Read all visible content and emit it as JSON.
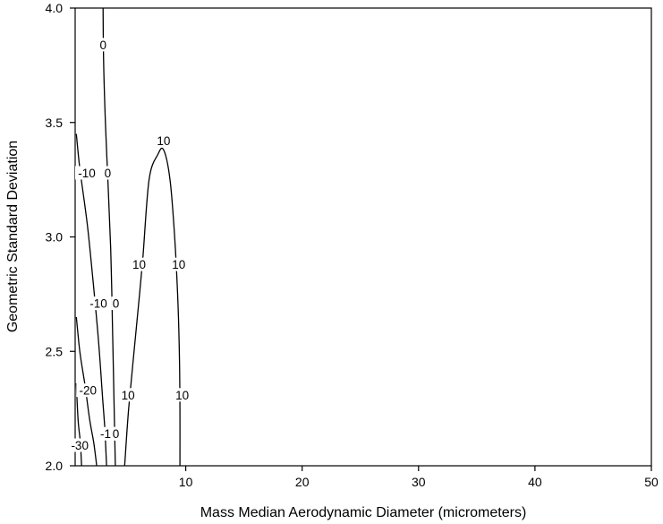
{
  "chart_data": {
    "type": "contour",
    "title": "",
    "xlabel": "Mass Median Aerodynamic Diameter (micrometers)",
    "ylabel": "Geometric Standard Deviation",
    "xlim": [
      0.5,
      50
    ],
    "ylim": [
      2.0,
      4.0
    ],
    "x_ticks": [
      10,
      20,
      30,
      40,
      50
    ],
    "y_ticks": [
      2.0,
      2.5,
      3.0,
      3.5,
      4.0
    ],
    "x_tick_labels": [
      "10",
      "20",
      "30",
      "40",
      "50"
    ],
    "y_tick_labels": [
      "2.0",
      "2.5",
      "3.0",
      "3.5",
      "4.0"
    ],
    "grid": false,
    "contours": [
      {
        "level": -30,
        "label": "-30",
        "points": [
          [
            0.6,
            2.36
          ],
          [
            0.75,
            2.2
          ],
          [
            0.95,
            2.1
          ],
          [
            1.05,
            2.0
          ]
        ],
        "labels_at": [
          [
            0.9,
            2.09
          ]
        ]
      },
      {
        "level": -20,
        "label": "-20",
        "points": [
          [
            0.6,
            2.65
          ],
          [
            0.9,
            2.5
          ],
          [
            1.35,
            2.35
          ],
          [
            1.75,
            2.2
          ],
          [
            2.1,
            2.1
          ],
          [
            2.35,
            2.0
          ]
        ],
        "labels_at": [
          [
            1.6,
            2.33
          ]
        ]
      },
      {
        "level": -10,
        "label": "-10",
        "points": [
          [
            0.6,
            3.45
          ],
          [
            0.9,
            3.3
          ],
          [
            1.55,
            3.05
          ],
          [
            2.05,
            2.8
          ],
          [
            2.5,
            2.55
          ],
          [
            2.85,
            2.3
          ],
          [
            3.05,
            2.16
          ],
          [
            3.2,
            2.0
          ]
        ],
        "labels_at": [
          [
            1.5,
            3.28
          ],
          [
            2.5,
            2.71
          ],
          [
            3.4,
            2.14
          ]
        ]
      },
      {
        "level": 0,
        "label": "0",
        "points": [
          [
            2.9,
            4.0
          ],
          [
            2.95,
            3.75
          ],
          [
            3.1,
            3.5
          ],
          [
            3.35,
            3.2
          ],
          [
            3.55,
            2.95
          ],
          [
            3.65,
            2.75
          ],
          [
            3.75,
            2.5
          ],
          [
            3.85,
            2.25
          ],
          [
            3.95,
            2.0
          ]
        ],
        "labels_at": [
          [
            2.9,
            3.84
          ],
          [
            3.3,
            3.28
          ],
          [
            4.0,
            2.71
          ],
          [
            4.0,
            2.14
          ]
        ]
      },
      {
        "level": 10,
        "label": "10",
        "points": [
          [
            4.75,
            2.0
          ],
          [
            5.1,
            2.25
          ],
          [
            5.75,
            2.6
          ],
          [
            6.3,
            2.9
          ],
          [
            6.85,
            3.25
          ],
          [
            7.6,
            3.36
          ],
          [
            8.1,
            3.38
          ],
          [
            8.65,
            3.25
          ],
          [
            9.05,
            3.0
          ],
          [
            9.3,
            2.75
          ],
          [
            9.45,
            2.5
          ],
          [
            9.5,
            2.25
          ],
          [
            9.5,
            2.0
          ]
        ],
        "labels_at": [
          [
            8.1,
            3.42
          ],
          [
            6.0,
            2.88
          ],
          [
            9.4,
            2.88
          ],
          [
            5.05,
            2.31
          ],
          [
            9.7,
            2.31
          ]
        ]
      }
    ]
  }
}
